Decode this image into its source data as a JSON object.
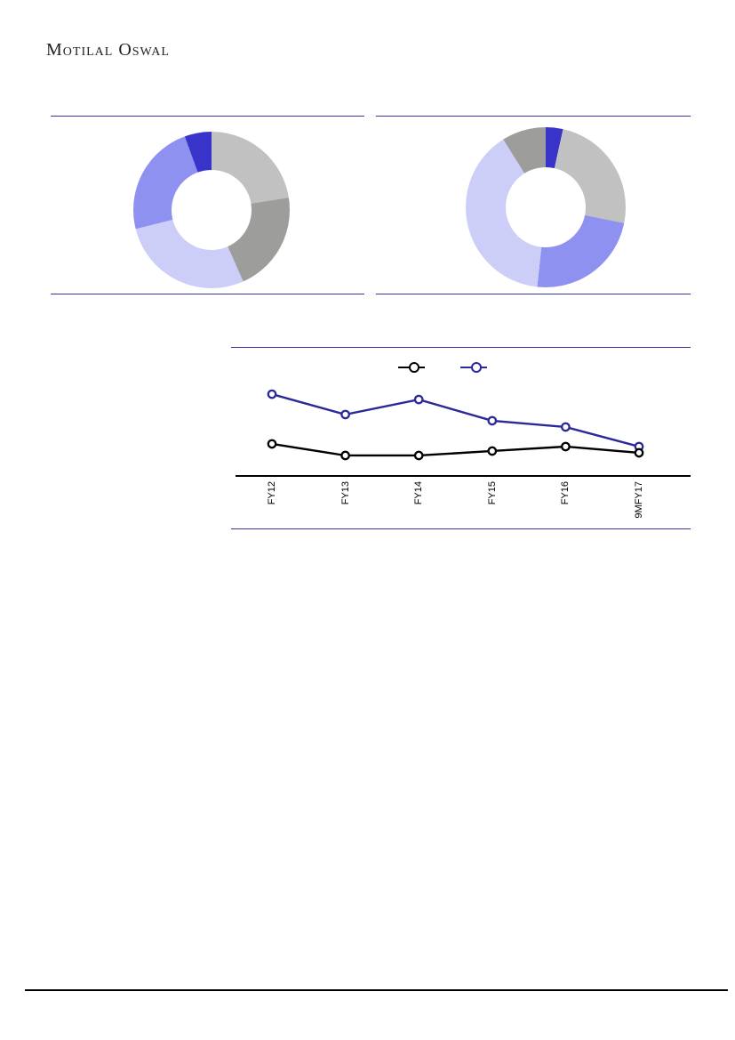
{
  "page": {
    "background_color": "#FFFFFF",
    "footer_rule_color": "#000000"
  },
  "header": {
    "logo_text": "Motilal Oswal",
    "logo_color": "#1F1F1F"
  },
  "styles": {
    "chart_frame_line_color": "#39379E",
    "axis_line_color": "#000000"
  },
  "chart_data": [
    {
      "id": "donut-left",
      "type": "pie",
      "subtype": "donut",
      "title": "",
      "legend_position": "none",
      "data_labels_visible": false,
      "segments": [
        {
          "label": "",
          "color": "#C1C1C1",
          "percent": 22.5,
          "start_deg": 0,
          "end_deg": 81
        },
        {
          "label": "",
          "color": "#9D9D9B",
          "percent": 20.8,
          "start_deg": 81,
          "end_deg": 156
        },
        {
          "label": "",
          "color": "#CDCEF8",
          "percent": 27.8,
          "start_deg": 156,
          "end_deg": 256
        },
        {
          "label": "",
          "color": "#8E91F0",
          "percent": 23.3,
          "start_deg": 256,
          "end_deg": 340
        },
        {
          "label": "",
          "color": "#3834CA",
          "percent": 5.6,
          "start_deg": 340,
          "end_deg": 360
        }
      ]
    },
    {
      "id": "donut-right",
      "type": "pie",
      "subtype": "donut",
      "title": "",
      "legend_position": "none",
      "data_labels_visible": false,
      "segments": [
        {
          "label": "",
          "color": "#3834CA",
          "percent": 3.5,
          "start_deg": 0,
          "end_deg": 12.5
        },
        {
          "label": "",
          "color": "#C1C1C1",
          "percent": 24.7,
          "start_deg": 12.5,
          "end_deg": 101.5
        },
        {
          "label": "",
          "color": "#8E91F0",
          "percent": 23.5,
          "start_deg": 101.5,
          "end_deg": 186
        },
        {
          "label": "",
          "color": "#CDCEF8",
          "percent": 39.4,
          "start_deg": 186,
          "end_deg": 328
        },
        {
          "label": "",
          "color": "#9D9D9B",
          "percent": 8.9,
          "start_deg": 328,
          "end_deg": 360
        }
      ]
    },
    {
      "id": "line-trend",
      "type": "line",
      "title": "",
      "categories": [
        "FY12",
        "FY13",
        "FY14",
        "FY15",
        "FY16",
        "9MFY17"
      ],
      "series": [
        {
          "name": "series-1",
          "color": "#000000",
          "marker": "open-circle",
          "values": [
            25.2,
            16.1,
            16.1,
            19.6,
            23.1,
            18.2
          ]
        },
        {
          "name": "series-2",
          "color": "#2B2899",
          "marker": "open-circle",
          "values": [
            64.3,
            48.3,
            60.1,
            43.4,
            38.5,
            23.1
          ]
        }
      ],
      "legend": {
        "position": "top",
        "labels": [
          "",
          ""
        ]
      },
      "ylim": [
        0,
        100
      ],
      "y_axis_labels_visible": false,
      "grid": false,
      "value_scale": "relative 0-100 (no y-axis scale shown in image)"
    }
  ]
}
